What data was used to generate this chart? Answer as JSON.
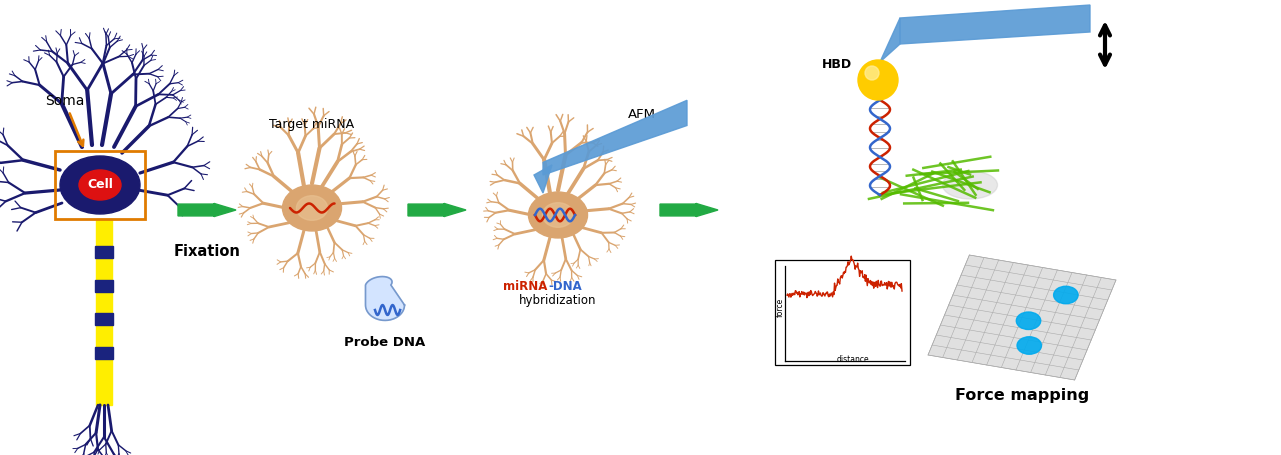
{
  "bg_color": "#ffffff",
  "neuron_body_color": "#1a1a6e",
  "soma_rect_color": "#e07b00",
  "axon_color": "#ffee00",
  "axon_node_color": "#1a237e",
  "tan_neuron_color": "#daa570",
  "tan_neuron_light": "#e8c090",
  "afm_color": "#5b9bd5",
  "green_fiber_color": "#55bb00",
  "hbd_color": "#ffcc00",
  "dna_red": "#cc2200",
  "dna_blue": "#3366cc",
  "force_curve_color": "#cc2200",
  "grid_color": "#aaaaaa",
  "arrow_green": "#22aa44",
  "labels": {
    "soma": "Soma",
    "cell": "Cell",
    "fixation": "Fixation",
    "target_mirna": "Target miRNA",
    "probe_dna": "Probe DNA",
    "afm": "AFM",
    "mirna": "miRNA",
    "dna_hyb": "-DNA\nhybridization",
    "hbd": "HBD",
    "force_mapping": "Force mapping",
    "force": "force",
    "distance": "distance"
  },
  "figsize": [
    12.81,
    4.55
  ],
  "dpi": 100
}
